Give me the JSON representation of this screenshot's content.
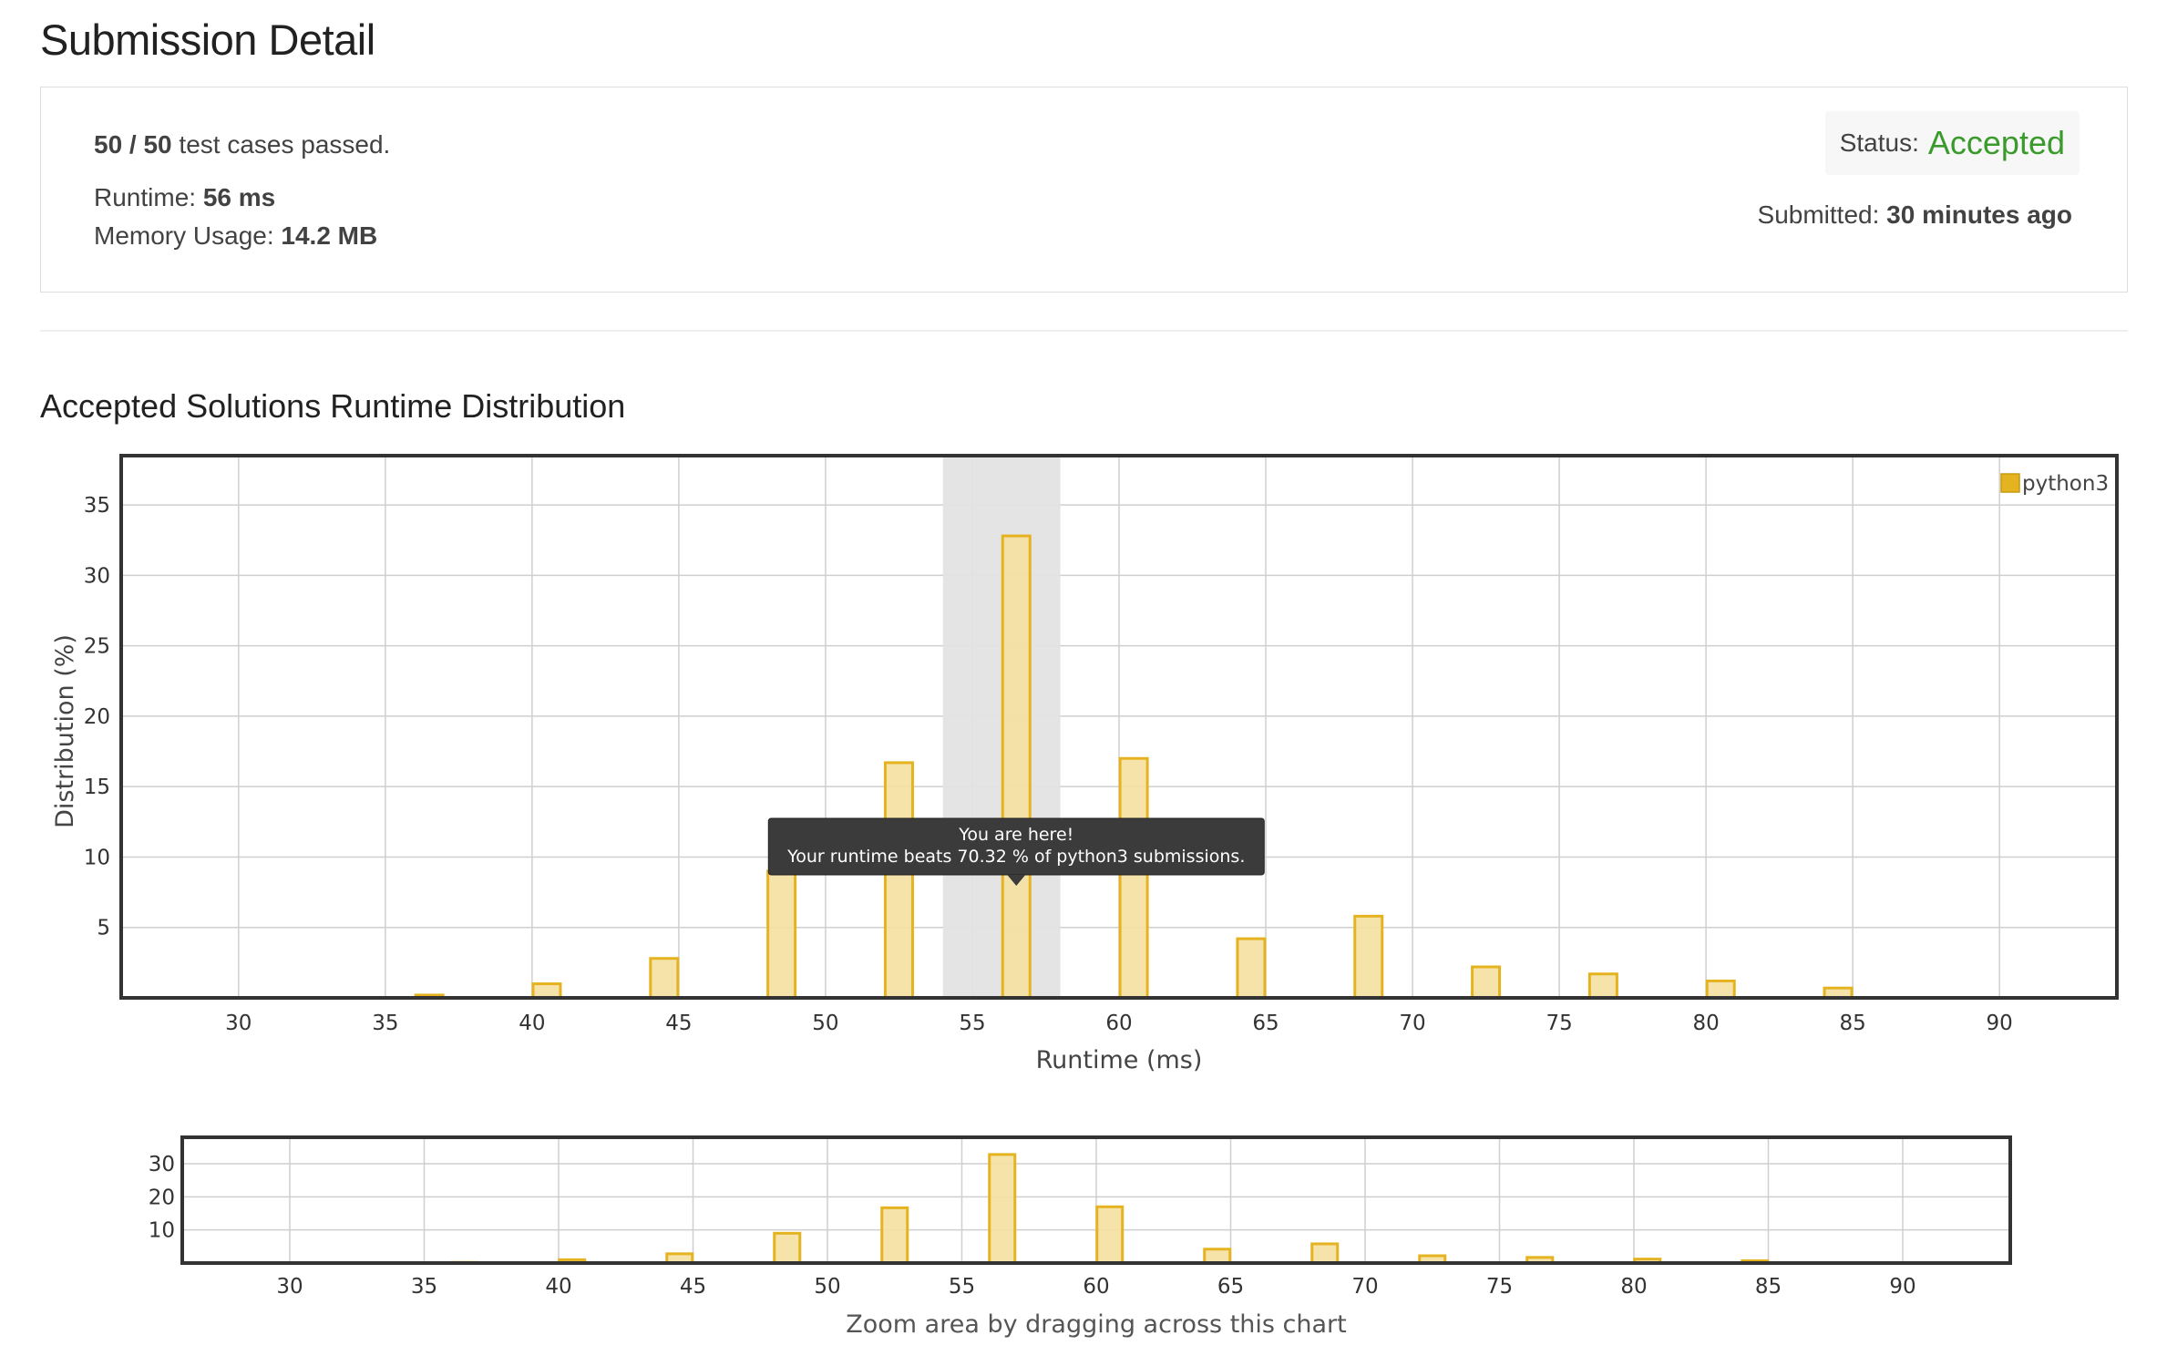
{
  "page": {
    "title": "Submission Detail"
  },
  "summary": {
    "tests_passed": "50 / 50",
    "tests_suffix": "test cases passed.",
    "runtime_label": "Runtime:",
    "runtime_value": "56 ms",
    "memory_label": "Memory Usage:",
    "memory_value": "14.2 MB",
    "status_label": "Status:",
    "status_value": "Accepted",
    "submitted_label": "Submitted:",
    "submitted_value": "30 minutes ago"
  },
  "colors": {
    "accent_green": "#3a9a2c",
    "bar_fill": "#f5e0a0",
    "bar_stroke": "#e6b320",
    "highlight_band": "#e3e3e3",
    "tooltip_bg": "#3b3b3b"
  },
  "section": {
    "title": "Accepted Solutions Runtime Distribution"
  },
  "tooltip": {
    "line1": "You are here!",
    "line2": "Your runtime beats 70.32 % of python3 submissions."
  },
  "navigator": {
    "caption": "Zoom area by dragging across this chart"
  },
  "chart_data": {
    "type": "bar",
    "title": "",
    "xlabel": "Runtime (ms)",
    "ylabel": "Distribution (%)",
    "legend": "top-right",
    "grid": true,
    "xlim": [
      26,
      94
    ],
    "ylim": [
      0,
      38.5
    ],
    "xticks": [
      30,
      35,
      40,
      45,
      50,
      55,
      60,
      65,
      70,
      75,
      80,
      85,
      90
    ],
    "yticks": [
      5,
      10,
      15,
      20,
      25,
      30,
      35
    ],
    "series": [
      {
        "name": "python3",
        "color": "#e6b320",
        "x": [
          36.5,
          40.5,
          44.5,
          48.5,
          52.5,
          56.5,
          60.5,
          64.5,
          68.5,
          72.5,
          76.5,
          80.5,
          84.5
        ],
        "values": [
          0.2,
          1.0,
          2.8,
          9.0,
          16.7,
          32.8,
          17.0,
          4.2,
          5.8,
          2.2,
          1.7,
          1.2,
          0.7
        ]
      }
    ],
    "highlight": {
      "x_from": 54,
      "x_to": 58
    },
    "navigator": {
      "yticks": [
        10,
        20,
        30
      ],
      "ylim": [
        0,
        38
      ]
    }
  }
}
